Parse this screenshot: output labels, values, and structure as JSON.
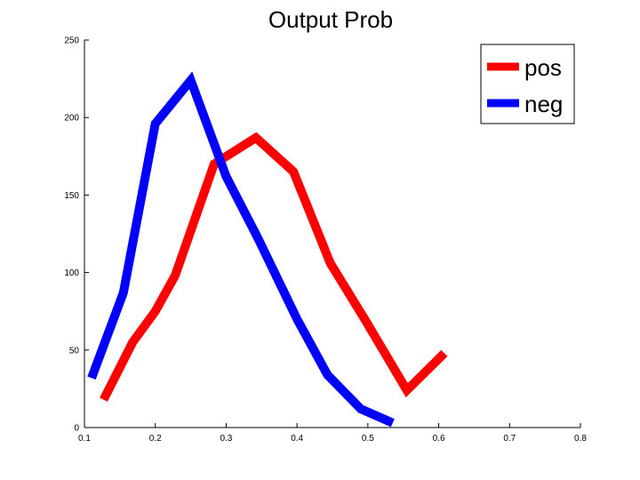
{
  "chart_data": {
    "type": "line",
    "title": "Output Prob",
    "xlabel": "",
    "ylabel": "",
    "xlim": [
      0.1,
      0.8
    ],
    "ylim": [
      0,
      250
    ],
    "x_ticks": [
      "0.1",
      "0.2",
      "0.3",
      "0.4",
      "0.5",
      "0.6",
      "0.7",
      "0.8"
    ],
    "y_ticks": [
      "0",
      "50",
      "100",
      "150",
      "200",
      "250"
    ],
    "grid": false,
    "legend_position": "top-right",
    "series": [
      {
        "name": "pos",
        "color": "#ff0000",
        "points": [
          {
            "x": 0.127,
            "y": 18
          },
          {
            "x": 0.168,
            "y": 55
          },
          {
            "x": 0.2,
            "y": 75
          },
          {
            "x": 0.228,
            "y": 98
          },
          {
            "x": 0.283,
            "y": 170
          },
          {
            "x": 0.342,
            "y": 187
          },
          {
            "x": 0.395,
            "y": 165
          },
          {
            "x": 0.447,
            "y": 106
          },
          {
            "x": 0.498,
            "y": 68
          },
          {
            "x": 0.555,
            "y": 24
          },
          {
            "x": 0.608,
            "y": 48
          }
        ]
      },
      {
        "name": "neg",
        "color": "#0000ff",
        "points": [
          {
            "x": 0.11,
            "y": 32
          },
          {
            "x": 0.155,
            "y": 87
          },
          {
            "x": 0.2,
            "y": 196
          },
          {
            "x": 0.25,
            "y": 224
          },
          {
            "x": 0.3,
            "y": 162
          },
          {
            "x": 0.345,
            "y": 122
          },
          {
            "x": 0.4,
            "y": 70
          },
          {
            "x": 0.443,
            "y": 34
          },
          {
            "x": 0.49,
            "y": 12
          },
          {
            "x": 0.535,
            "y": 3
          }
        ]
      }
    ]
  }
}
